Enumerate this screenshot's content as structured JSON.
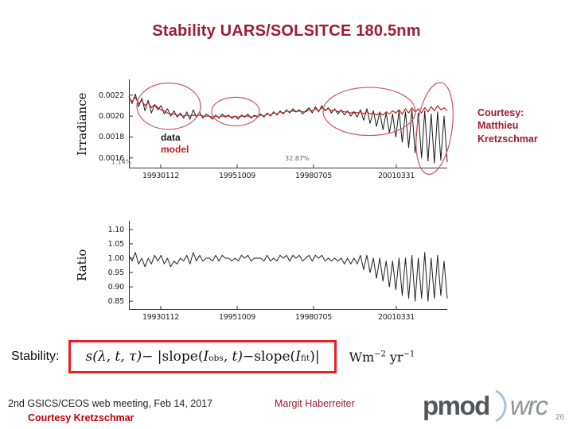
{
  "title": "Stability UARS/SOLSITCE 180.5nm",
  "courtesy_note": "Courtesy:\nMatthieu\nKretzschmar",
  "stability": {
    "label": "Stability:"
  },
  "equation": {
    "lhs": "s(λ, t, τ)",
    "minus1": " − |",
    "slope1": "slope(",
    "i1": "I",
    "sub1": "obs",
    "argt": ", t)",
    "minus2": " − ",
    "slope2": "slope(",
    "i2": "I",
    "sub2": "fit",
    "close": ")|"
  },
  "units": {
    "u1": "Wm",
    "u2": "−2",
    "u3": " yr",
    "u4": "−1"
  },
  "footer": {
    "meeting": "2nd GSICS/CEOS web meeting, Feb 14, 2017",
    "author": "Margit Haberreiter",
    "courtesy": "Courtesy Kretzschmar",
    "page": "26"
  },
  "logo": {
    "part1": "pmod",
    "part2": "wrc"
  },
  "colors": {
    "accent_maroon": "#9e1b32",
    "bright_red": "#c00000",
    "box_red": "#ee1c25",
    "series_data": "#1a1a1a",
    "series_model": "#bb2222",
    "ellipse": "#cc5566"
  },
  "chart_data": [
    {
      "type": "line",
      "title": "",
      "xlabel": "",
      "ylabel": "Irradiance",
      "ylim": [
        0.0015,
        0.00235
      ],
      "grid": false,
      "yticks": [
        0.0022,
        0.002,
        0.0018,
        0.0016
      ],
      "ytick_labels": [
        "0.0022",
        "0.0020",
        "0.0018",
        "0.0016"
      ],
      "xtick_labels": [
        "19930112",
        "19951009",
        "19980705",
        "20010331"
      ],
      "xtick_pos": [
        0.1,
        0.34,
        0.58,
        0.84
      ],
      "legend": [
        {
          "name": "data",
          "color": "#1a1a1a"
        },
        {
          "name": "model",
          "color": "#bb2222"
        }
      ],
      "annotations": {
        "labels": [
          {
            "text": "1.14%",
            "x": -0.055,
            "y": 0.95
          },
          {
            "text": "32.87%",
            "x": 0.49,
            "y": 0.91
          }
        ],
        "ellipses": [
          {
            "cx": 0.125,
            "cy": 0.3,
            "rx": 0.1,
            "ry": 0.26,
            "rotate": 0
          },
          {
            "cx": 0.335,
            "cy": 0.36,
            "rx": 0.075,
            "ry": 0.16,
            "rotate": 0
          },
          {
            "cx": 0.755,
            "cy": 0.36,
            "rx": 0.145,
            "ry": 0.27,
            "rotate": 0
          },
          {
            "cx": 0.96,
            "cy": 0.55,
            "rx": 0.055,
            "ry": 0.52,
            "rotate": 8
          }
        ]
      },
      "series": [
        {
          "name": "data",
          "color": "#1a1a1a",
          "width": 1,
          "values": [
            0.00219,
            0.00212,
            0.00221,
            0.00209,
            0.00217,
            0.00205,
            0.00215,
            0.00203,
            0.00211,
            0.00206,
            0.0021,
            0.00202,
            0.00207,
            0.002,
            0.00205,
            0.00199,
            0.00203,
            0.00198,
            0.00204,
            0.00197,
            0.00206,
            0.00199,
            0.00204,
            0.00198,
            0.00202,
            0.002,
            0.00197,
            0.00201,
            0.00198,
            0.00202,
            0.00199,
            0.00201,
            0.00198,
            0.002,
            0.00197,
            0.00201,
            0.00199,
            0.00202,
            0.00198,
            0.00201,
            0.00199,
            0.00202,
            0.00199,
            0.00203,
            0.002,
            0.00204,
            0.00201,
            0.00205,
            0.00202,
            0.00206,
            0.00203,
            0.00207,
            0.00204,
            0.00206,
            0.00202,
            0.00205,
            0.00208,
            0.00203,
            0.00209,
            0.00204,
            0.0021,
            0.00205,
            0.00208,
            0.00203,
            0.00207,
            0.00202,
            0.00206,
            0.00201,
            0.00205,
            0.002,
            0.00204,
            0.00199,
            0.00206,
            0.00196,
            0.00207,
            0.00193,
            0.00205,
            0.0019,
            0.00204,
            0.00187,
            0.00203,
            0.00184,
            0.00202,
            0.0018,
            0.00205,
            0.00175,
            0.00204,
            0.0017,
            0.00206,
            0.00165,
            0.00203,
            0.0016,
            0.00205,
            0.00157,
            0.00202,
            0.00155,
            0.00204,
            0.00158,
            0.002,
            0.00156
          ]
        },
        {
          "name": "model",
          "color": "#bb2222",
          "width": 1.2,
          "values": [
            0.00217,
            0.00214,
            0.00218,
            0.00212,
            0.00215,
            0.0021,
            0.00213,
            0.00208,
            0.00211,
            0.00208,
            0.00206,
            0.00205,
            0.00203,
            0.00202,
            0.00202,
            0.00201,
            0.00201,
            0.002,
            0.00201,
            0.002,
            0.00201,
            0.002,
            0.00201,
            0.002,
            0.002,
            0.002,
            0.00199,
            0.002,
            0.00199,
            0.002,
            0.002,
            0.002,
            0.00199,
            0.002,
            0.00199,
            0.002,
            0.002,
            0.002,
            0.00199,
            0.002,
            0.002,
            0.00201,
            0.002,
            0.00202,
            0.00201,
            0.00203,
            0.00202,
            0.00204,
            0.00203,
            0.00205,
            0.00204,
            0.00205,
            0.00204,
            0.00205,
            0.00204,
            0.00204,
            0.00206,
            0.00205,
            0.00207,
            0.00205,
            0.00208,
            0.00206,
            0.00207,
            0.00205,
            0.00206,
            0.00204,
            0.00205,
            0.00204,
            0.00204,
            0.00203,
            0.00204,
            0.00203,
            0.00204,
            0.00202,
            0.00204,
            0.00202,
            0.00203,
            0.00201,
            0.00203,
            0.00201,
            0.00204,
            0.00202,
            0.00205,
            0.00203,
            0.00206,
            0.00202,
            0.00207,
            0.00203,
            0.00208,
            0.00204,
            0.00207,
            0.00203,
            0.00208,
            0.00204,
            0.00209,
            0.00205,
            0.0021,
            0.00206,
            0.00208,
            0.00205
          ]
        }
      ]
    },
    {
      "type": "line",
      "title": "",
      "xlabel": "",
      "ylabel": "Ratio",
      "ylim": [
        0.82,
        1.13
      ],
      "grid": false,
      "yticks": [
        1.1,
        1.05,
        1.0,
        0.95,
        0.9,
        0.85
      ],
      "ytick_labels": [
        "1.10",
        "1.05",
        "1.00",
        "0.95",
        "0.90",
        "0.85"
      ],
      "xtick_labels": [
        "19930112",
        "19951009",
        "19980705",
        "20010331"
      ],
      "xtick_pos": [
        0.1,
        0.34,
        0.58,
        0.84
      ],
      "series": [
        {
          "name": "ratio",
          "color": "#222222",
          "width": 1,
          "values": [
            1.01,
            0.99,
            1.02,
            0.98,
            1.0,
            0.97,
            1.0,
            0.98,
            1.01,
            0.99,
            1.01,
            0.98,
            1.0,
            0.97,
            0.99,
            0.98,
            1.0,
            0.99,
            1.01,
            0.98,
            1.02,
            0.99,
            1.01,
            0.99,
            1.0,
            1.0,
            0.99,
            1.01,
            0.99,
            1.01,
            1.0,
            1.0,
            0.99,
            1.0,
            0.99,
            1.01,
            1.0,
            1.01,
            0.99,
            1.0,
            1.0,
            1.0,
            0.99,
            1.01,
            0.99,
            1.0,
            0.99,
            1.01,
            1.0,
            1.01,
            0.99,
            1.01,
            1.0,
            1.01,
            0.99,
            1.0,
            1.01,
            0.99,
            1.01,
            1.0,
            1.01,
            0.99,
            1.0,
            0.99,
            1.0,
            0.99,
            1.0,
            0.98,
            1.0,
            0.98,
            1.0,
            0.98,
            1.01,
            0.96,
            1.01,
            0.95,
            1.0,
            0.93,
            1.0,
            0.92,
            0.99,
            0.9,
            0.99,
            0.89,
            1.0,
            0.87,
            1.0,
            0.86,
            1.01,
            0.85,
            1.0,
            0.86,
            1.02,
            0.85,
            1.0,
            0.86,
            1.01,
            0.87,
            0.99,
            0.86
          ]
        }
      ]
    }
  ]
}
